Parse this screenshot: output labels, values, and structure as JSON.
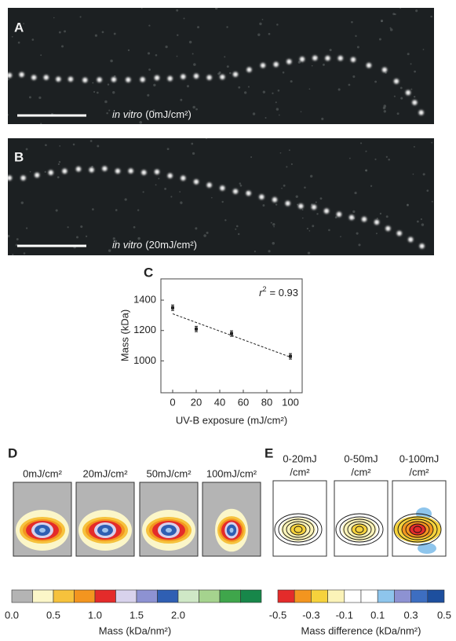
{
  "panels": {
    "a": {
      "label": "A",
      "caption_italic": "in vitro",
      "caption": "(0mJ/cm²)"
    },
    "b": {
      "label": "B",
      "caption_italic": "in vitro",
      "caption": "(20mJ/cm²)"
    },
    "c": {
      "label": "C"
    },
    "d": {
      "label": "D",
      "headers": [
        "0mJ/cm²",
        "20mJ/cm²",
        "50mJ/cm²",
        "100mJ/cm²"
      ]
    },
    "e": {
      "label": "E",
      "headers": [
        [
          "0-20mJ",
          "/cm²"
        ],
        [
          "0-50mJ",
          "/cm²"
        ],
        [
          "0-100mJ",
          "/cm²"
        ]
      ]
    }
  },
  "chart_data": {
    "type": "scatter",
    "x_label": "UV-B exposure (mJ/cm²)",
    "y_label": "Mass (kDa)",
    "annotation": {
      "symbol": "r",
      "power": "2",
      "text": "= 0.93"
    },
    "x": [
      0,
      20,
      50,
      100
    ],
    "series": [
      {
        "color": "#222222",
        "values": [
          1350,
          1210,
          1180,
          1030
        ],
        "errors": [
          18,
          18,
          18,
          18
        ]
      }
    ],
    "fit": {
      "x": [
        0,
        100
      ],
      "y": [
        1310,
        1025
      ],
      "color": "#222222"
    },
    "xlim": [
      -10,
      110
    ],
    "ylim": [
      790,
      1540
    ],
    "xticks": [
      0,
      20,
      40,
      60,
      80,
      100
    ],
    "yticks": [
      1000,
      1200,
      1400
    ]
  },
  "colorbars": [
    {
      "title": "Mass (kDa/nm²)",
      "range": [
        0,
        3
      ],
      "colors": [
        "#b4b4b4",
        "#fbf6c8",
        "#f6c23c",
        "#f3951f",
        "#e42b2a",
        "#d8d2ec",
        "#8d92d2",
        "#2f5fb3",
        "#cfe8c6",
        "#a5d38e",
        "#3fa64b",
        "#17874a"
      ],
      "ticks": [
        {
          "value": 0,
          "label": "0.0"
        },
        0.5,
        {
          "value": 1,
          "label": "1.0"
        },
        1.5,
        {
          "value": 2,
          "label": "2.0"
        }
      ]
    },
    {
      "title": "Mass difference (kDa/nm²)",
      "range": [
        -0.5,
        0.5
      ],
      "colors": [
        "#e42b2a",
        "#f3951f",
        "#f6d23c",
        "#fbf3b8",
        "#ffffff",
        "#ffffff",
        "#8ec5ec",
        "#8d92d2",
        "#3d6ec1",
        "#1d4f9e"
      ],
      "ticks": [
        -0.5,
        -0.3,
        -0.1,
        0.1,
        0.3,
        0.5
      ]
    }
  ]
}
